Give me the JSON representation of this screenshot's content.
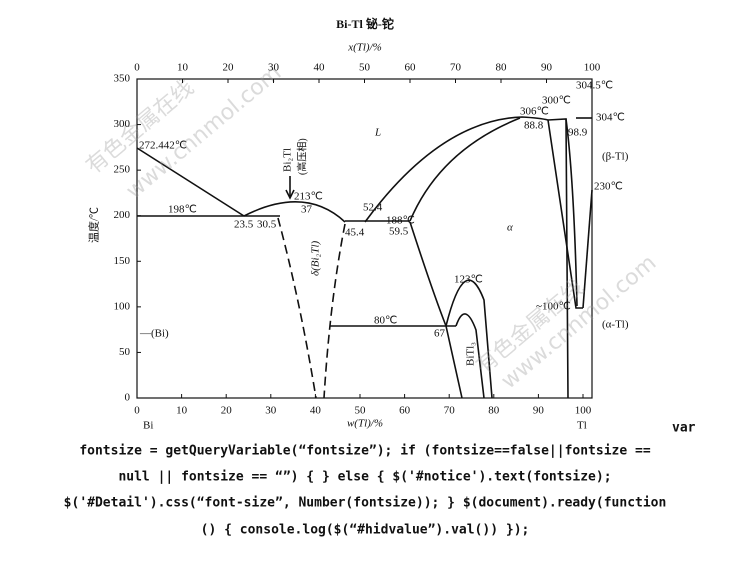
{
  "diagram": {
    "title": "Bi-Tl 铋-铊",
    "top_axis": {
      "label": "x(Tl)/%",
      "ticks": [
        "0",
        "10",
        "20",
        "30",
        "40",
        "50",
        "60",
        "70",
        "80",
        "90",
        "100"
      ]
    },
    "bottom_axis": {
      "label": "w(Tl)/%",
      "ticks": [
        "0",
        "10",
        "20",
        "30",
        "40",
        "50",
        "60",
        "70",
        "80",
        "90",
        "100"
      ]
    },
    "y_axis": {
      "label": "温度/℃",
      "ticks": [
        "0",
        "50",
        "100",
        "150",
        "200",
        "250",
        "300",
        "350"
      ]
    },
    "ends": [
      "Bi",
      "Tl"
    ],
    "annotations": [
      "272.442℃",
      "198℃",
      "23.5",
      "30.5",
      "Bi₂Tl",
      "(高压相)",
      "213℃",
      "37",
      "52.4",
      "188℃",
      "45.4",
      "59.5",
      "δ(Bi₂Tl)",
      "L",
      "α",
      "306℃",
      "300℃",
      "304.5℃",
      "88.8",
      "98.9",
      "304℃",
      "(β-Tl)",
      "230℃",
      "~100℃",
      "(α-Tl)",
      "80℃",
      "67",
      "123℃",
      "BiTl₃",
      "—(Bi)"
    ]
  },
  "watermarks": [
    "有色金属在线",
    "www.cnnmol.com",
    "有色金属在线",
    "www.cnnmol.com"
  ],
  "code_text": [
    "var",
    "fontsize = getQueryVariable(“fontsize”); if (fontsize==false||fontsize ==",
    "null || fontsize == “”) { } else { $('#notice').text(fontsize);",
    "$('#Detail').css(“font-size”, Number(fontsize)); } $(document).ready(function",
    "() { console.log($(“#hidvalue”).val()) });"
  ]
}
